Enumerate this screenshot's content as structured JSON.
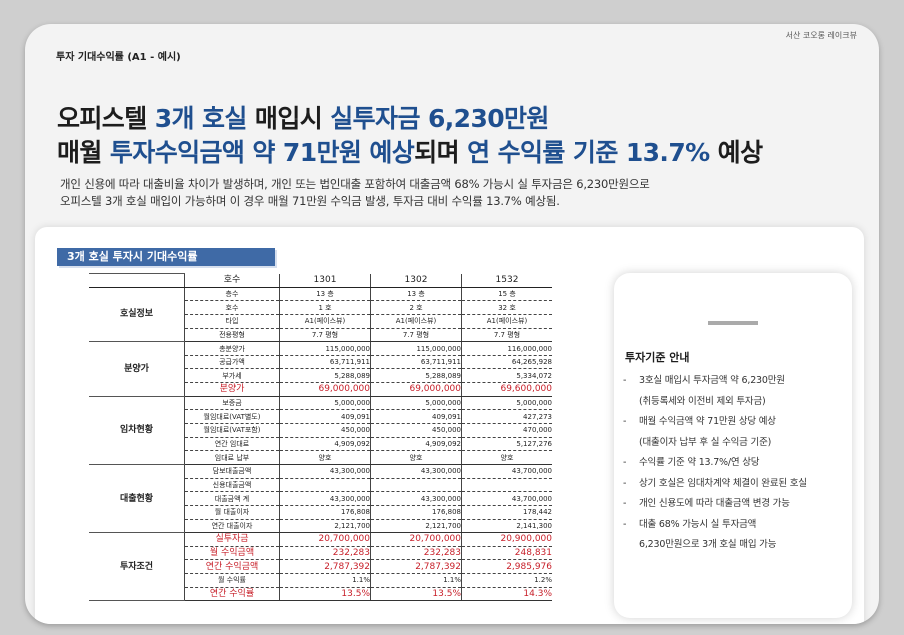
{
  "brand": "서산 코오롱 레이크뷰",
  "section_label": "투자 기대수익률 (A1 - 예시)",
  "headline": {
    "l1_a": "오피스텔 ",
    "l1_b": "3개 호실",
    "l1_c": " 매입시 ",
    "l1_d": "실투자금 6,230만원",
    "l2_a": "매월 ",
    "l2_b": "투자수익금액 약 71만원 예상",
    "l2_c": "되며 ",
    "l2_d": "연 수익률 기준 13.7%",
    "l2_e": " 예상"
  },
  "description": {
    "line1": "개인 신용에 따라 대출비율 차이가 발생하며, 개인 또는 법인대출 포함하여 대출금액 68% 가능시 실 투자금은 6,230만원으로",
    "line2": "오피스텔 3개 호실 매입이 가능하며 이 경우 매월 71만원 수익금 발생, 투자금 대비 수익률 13.7% 예상됨."
  },
  "table_title": "3개 호실 투자시 기대수익률",
  "table": {
    "header": {
      "label": "호수",
      "cols": [
        "1301",
        "1302",
        "1532"
      ]
    },
    "groups": [
      {
        "name": "호실정보",
        "rows": [
          {
            "label": "층수",
            "values": [
              "13 층",
              "13 층",
              "15 층"
            ]
          },
          {
            "label": "호수",
            "values": [
              "1 호",
              "2 호",
              "32 호"
            ]
          },
          {
            "label": "타입",
            "values": [
              "A1(페이스뷰)",
              "A1(페이스뷰)",
              "A1(페이스뷰)"
            ]
          },
          {
            "label": "전용평형",
            "values": [
              "7.7 평형",
              "7.7 평형",
              "7.7 평형"
            ]
          }
        ]
      },
      {
        "name": "분양가",
        "rows": [
          {
            "label": "총분양가",
            "values": [
              "115,000,000",
              "115,000,000",
              "116,000,000"
            ]
          },
          {
            "label": "공급가액",
            "values": [
              "63,711,911",
              "63,711,911",
              "64,265,928"
            ]
          },
          {
            "label": "부가세",
            "values": [
              "5,288,089",
              "5,288,089",
              "5,334,072"
            ]
          },
          {
            "label": "분양가",
            "values": [
              "69,000,000",
              "69,000,000",
              "69,600,000"
            ],
            "red": true
          }
        ]
      },
      {
        "name": "임차현황",
        "rows": [
          {
            "label": "보증금",
            "values": [
              "5,000,000",
              "5,000,000",
              "5,000,000"
            ]
          },
          {
            "label": "월임대료(VAT별도)",
            "values": [
              "409,091",
              "409,091",
              "427,273"
            ]
          },
          {
            "label": "월임대료(VAT포함)",
            "values": [
              "450,000",
              "450,000",
              "470,000"
            ]
          },
          {
            "label": "연간 임대료",
            "values": [
              "4,909,092",
              "4,909,092",
              "5,127,276"
            ]
          },
          {
            "label": "임대료 납부",
            "values": [
              "양호",
              "양호",
              "양호"
            ]
          }
        ]
      },
      {
        "name": "대출현황",
        "rows": [
          {
            "label": "담보대출금액",
            "values": [
              "43,300,000",
              "43,300,000",
              "43,700,000"
            ]
          },
          {
            "label": "신용대출금액",
            "values": [
              "",
              "",
              ""
            ]
          },
          {
            "label": "대출금액 계",
            "values": [
              "43,300,000",
              "43,300,000",
              "43,700,000"
            ]
          },
          {
            "label": "월 대출이자",
            "values": [
              "176,808",
              "176,808",
              "178,442"
            ]
          },
          {
            "label": "연간 대출이자",
            "values": [
              "2,121,700",
              "2,121,700",
              "2,141,300"
            ]
          }
        ]
      },
      {
        "name": "투자조건",
        "rows": [
          {
            "label": "실투자금",
            "values": [
              "20,700,000",
              "20,700,000",
              "20,900,000"
            ],
            "red": true
          },
          {
            "label": "월 수익금액",
            "values": [
              "232,283",
              "232,283",
              "248,831"
            ],
            "red": true
          },
          {
            "label": "연간 수익금액",
            "values": [
              "2,787,392",
              "2,787,392",
              "2,985,976"
            ],
            "red": true
          },
          {
            "label": "월 수익률",
            "values": [
              "1.1%",
              "1.1%",
              "1.2%"
            ]
          },
          {
            "label": "연간 수익률",
            "values": [
              "13.5%",
              "13.5%",
              "14.3%"
            ],
            "red": true
          }
        ]
      }
    ]
  },
  "side": {
    "title": "투자기준 안내",
    "items": [
      {
        "text": "3호실 매입시 투자금액 약 6,230만원",
        "cont": "(취등록세와 이전비 제외 투자금)"
      },
      {
        "text": "매월 수익금액 약 71만원 상당 예상",
        "cont": "(대출이자 납부 후 실 수익금 기준)"
      },
      {
        "text": "수익률 기준 약 13.7%/연 상당",
        "cont": ""
      },
      {
        "text": "상기 호실은 임대차계약 체결이 완료된 호실",
        "cont": ""
      },
      {
        "text": "개인 신용도에 따라 대출금액 변경 가능",
        "cont": ""
      },
      {
        "text": "대출 68% 가능시 실 투자금액",
        "cont": "6,230만원으로 3개 호실 매입 가능"
      }
    ]
  }
}
